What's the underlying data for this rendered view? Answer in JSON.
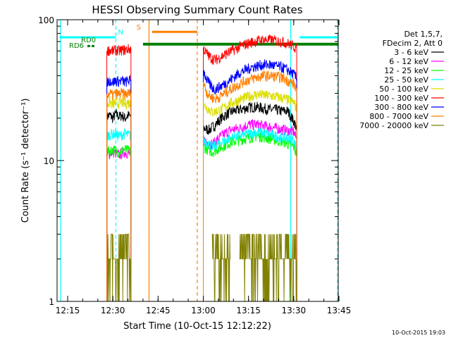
{
  "chart_data": {
    "type": "line",
    "title": "HESSI Observing Summary Count Rates",
    "xlabel": "Start Time (10-Oct-15 12:12:22)",
    "ylabel": "Count Rate (s⁻¹ detector⁻¹)",
    "y_scale": "log",
    "ylim": [
      1,
      100
    ],
    "xlim": [
      "12:12:22",
      "13:50:00"
    ],
    "x_ticks": [
      "12:15",
      "12:30",
      "12:45",
      "13:00",
      "13:15",
      "13:30",
      "13:45"
    ],
    "y_ticks": [
      "1",
      "10",
      "100"
    ],
    "legend_header": [
      "Det 1,5,7,",
      "FDecim 2, Att 0"
    ],
    "legend_position": "right",
    "series": [
      {
        "name": "3 - 6 keV",
        "color": "#000000",
        "segments": [
          {
            "x": [
              "12:28",
              "12:29",
              "12:30",
              "12:31",
              "12:32",
              "12:33",
              "12:34",
              "12:35",
              "12:36"
            ],
            "y": [
              20.5,
              21,
              20,
              21.5,
              20.5,
              21,
              20,
              21,
              20.5
            ]
          },
          {
            "x": [
              "13:00",
              "13:02",
              "13:04",
              "13:06",
              "13:08",
              "13:10",
              "13:12",
              "13:14",
              "13:16",
              "13:18",
              "13:20",
              "13:22",
              "13:24",
              "13:26",
              "13:28",
              "13:30",
              "13:31"
            ],
            "y": [
              17,
              16.5,
              18,
              20,
              21.5,
              22.5,
              23,
              23.5,
              24,
              24,
              23.5,
              23,
              23,
              22.5,
              22.5,
              19,
              17
            ]
          }
        ]
      },
      {
        "name": "6 - 12 keV",
        "color": "#ff00ff",
        "segments": [
          {
            "x": [
              "12:28",
              "12:30",
              "12:32",
              "12:34",
              "12:36"
            ],
            "y": [
              11,
              11.5,
              11,
              11.5,
              11
            ]
          },
          {
            "x": [
              "13:00",
              "13:03",
              "13:06",
              "13:09",
              "13:12",
              "13:15",
              "13:18",
              "13:21",
              "13:24",
              "13:27",
              "13:30",
              "13:31"
            ],
            "y": [
              14,
              13,
              15,
              16.5,
              17,
              18,
              18,
              17.5,
              17,
              16.5,
              16,
              14
            ]
          }
        ]
      },
      {
        "name": "12 - 25 keV",
        "color": "#00ff00",
        "segments": [
          {
            "x": [
              "12:28",
              "12:30",
              "12:32",
              "12:34",
              "12:36"
            ],
            "y": [
              11.5,
              12,
              11.5,
              12,
              11.5
            ]
          },
          {
            "x": [
              "13:00",
              "13:03",
              "13:06",
              "13:09",
              "13:12",
              "13:15",
              "13:18",
              "13:21",
              "13:24",
              "13:27",
              "13:30",
              "13:31"
            ],
            "y": [
              12.5,
              11.5,
              12.5,
              13.5,
              14,
              14.5,
              15,
              14.5,
              14,
              13.5,
              12.5,
              11
            ]
          }
        ]
      },
      {
        "name": "25 - 50 keV",
        "color": "#00ffff",
        "segments": [
          {
            "x": [
              "12:28",
              "12:30",
              "12:32",
              "12:34",
              "12:36"
            ],
            "y": [
              15,
              15.5,
              15,
              15.5,
              15
            ]
          },
          {
            "x": [
              "13:00",
              "13:03",
              "13:06",
              "13:09",
              "13:12",
              "13:15",
              "13:18",
              "13:21",
              "13:24",
              "13:27",
              "13:30",
              "13:31"
            ],
            "y": [
              14,
              12.5,
              13.5,
              14.5,
              15,
              15.5,
              16,
              15.5,
              15,
              14.5,
              14,
              12
            ]
          }
        ]
      },
      {
        "name": "50 - 100 keV",
        "color": "#dddd00",
        "segments": [
          {
            "x": [
              "12:28",
              "12:29",
              "12:30",
              "12:31",
              "12:32",
              "12:33",
              "12:34",
              "12:35",
              "12:36"
            ],
            "y": [
              25,
              26,
              25,
              26,
              25.5,
              26,
              25,
              26,
              25
            ]
          },
          {
            "x": [
              "13:00",
              "13:03",
              "13:06",
              "13:09",
              "13:12",
              "13:15",
              "13:18",
              "13:21",
              "13:24",
              "13:27",
              "13:30",
              "13:31"
            ],
            "y": [
              25,
              22,
              23,
              25.5,
              27,
              28.5,
              29.5,
              29,
              28.5,
              27.5,
              26,
              23
            ]
          }
        ]
      },
      {
        "name": "100 - 300 keV",
        "color": "#ff0000",
        "segments": [
          {
            "x": [
              "12:28",
              "12:29",
              "12:30",
              "12:31",
              "12:32",
              "12:33",
              "12:34",
              "12:35",
              "12:36"
            ],
            "y": [
              60,
              61,
              60,
              61,
              60,
              61,
              61,
              62,
              62
            ]
          },
          {
            "x": [
              "13:00",
              "13:01",
              "13:02",
              "13:03",
              "13:04",
              "13:05",
              "13:06",
              "13:08",
              "13:10",
              "13:12",
              "13:14",
              "13:16",
              "13:18",
              "13:20",
              "13:22",
              "13:24",
              "13:26",
              "13:28",
              "13:30",
              "13:31"
            ],
            "y": [
              63,
              58,
              55,
              53,
              52,
              53,
              55,
              58,
              61,
              64,
              67,
              69,
              71,
              72,
              72,
              71,
              70,
              68,
              65,
              62
            ]
          }
        ]
      },
      {
        "name": "300 - 800 keV",
        "color": "#0000ff",
        "segments": [
          {
            "x": [
              "12:28",
              "12:29",
              "12:30",
              "12:31",
              "12:32",
              "12:33",
              "12:34",
              "12:35",
              "12:36"
            ],
            "y": [
              36,
              37,
              36,
              37,
              36.5,
              37,
              36,
              37,
              37
            ]
          },
          {
            "x": [
              "13:00",
              "13:01",
              "13:02",
              "13:03",
              "13:04",
              "13:05",
              "13:06",
              "13:08",
              "13:10",
              "13:12",
              "13:14",
              "13:16",
              "13:18",
              "13:20",
              "13:22",
              "13:24",
              "13:26",
              "13:28",
              "13:30",
              "13:31"
            ],
            "y": [
              44,
              38,
              35,
              33,
              32,
              33,
              34,
              36,
              39,
              42,
              44,
              46,
              47,
              48,
              48,
              47,
              46,
              44,
              41,
              38
            ]
          }
        ]
      },
      {
        "name": "800 - 7000 keV",
        "color": "#ff7f00",
        "segments": [
          {
            "x": [
              "12:28",
              "12:29",
              "12:30",
              "12:31",
              "12:32",
              "12:33",
              "12:34",
              "12:35",
              "12:36"
            ],
            "y": [
              29,
              30,
              29,
              30,
              29.5,
              30,
              29.5,
              30,
              30
            ]
          },
          {
            "x": [
              "13:00",
              "13:01",
              "13:02",
              "13:03",
              "13:04",
              "13:05",
              "13:06",
              "13:08",
              "13:10",
              "13:12",
              "13:14",
              "13:16",
              "13:18",
              "13:20",
              "13:22",
              "13:24",
              "13:26",
              "13:28",
              "13:30",
              "13:31"
            ],
            "y": [
              36,
              31,
              29,
              28,
              27.5,
              28,
              29,
              31,
              33,
              35,
              37,
              38,
              39,
              40,
              40,
              39.5,
              39,
              37,
              35,
              32
            ]
          }
        ]
      },
      {
        "name": "7000 - 20000 keV",
        "color": "#808000",
        "segments": [
          {
            "x": [
              "12:28",
              "12:30",
              "12:32",
              "12:34",
              "12:36"
            ],
            "y": [
              2,
              2,
              2,
              2,
              2
            ]
          },
          {
            "x": [
              "13:03",
              "13:05",
              "13:07",
              "13:09"
            ],
            "y": [
              2,
              2,
              2,
              2
            ]
          },
          {
            "x": [
              "13:12",
              "13:15",
              "13:18",
              "13:21",
              "13:24",
              "13:27",
              "13:30",
              "13:31"
            ],
            "y": [
              2,
              2,
              2,
              2,
              2,
              2,
              2,
              2
            ]
          }
        ]
      }
    ],
    "annotations": [
      {
        "text": "N",
        "color": "#00ffff"
      },
      {
        "text": "S",
        "color": "#ff7f00"
      },
      {
        "text": "RD0",
        "color": "#008000"
      },
      {
        "text": "RD6",
        "color": "#008000"
      }
    ],
    "status_bars": [
      {
        "label": "N",
        "color": "#00ffff",
        "level": 75,
        "ranges": [
          [
            "12:12:22",
            "12:31"
          ],
          [
            "13:32",
            "13:47"
          ]
        ]
      },
      {
        "label": "S",
        "color": "#ff7f00",
        "level": 82,
        "ranges": [
          [
            "12:43",
            "12:58"
          ]
        ]
      },
      {
        "label": "RD0",
        "color": "#008000",
        "level": 67,
        "ranges": [
          [
            "12:40",
            "13:48"
          ]
        ]
      }
    ],
    "vlines": [
      {
        "x": "12:12:40",
        "color": "#00ffff",
        "style": "solid"
      },
      {
        "x": "12:31",
        "color": "#00ffff",
        "style": "dashed"
      },
      {
        "x": "12:42",
        "color": "#ff7f00",
        "style": "solid"
      },
      {
        "x": "12:58",
        "color": "#ff7f00",
        "style": "dashed"
      },
      {
        "x": "13:29",
        "color": "#00ffff",
        "style": "solid"
      },
      {
        "x": "13:47",
        "color": "#00ffff",
        "style": "dashed"
      }
    ],
    "footer_timestamp": "10-Oct-2015 19:03"
  }
}
